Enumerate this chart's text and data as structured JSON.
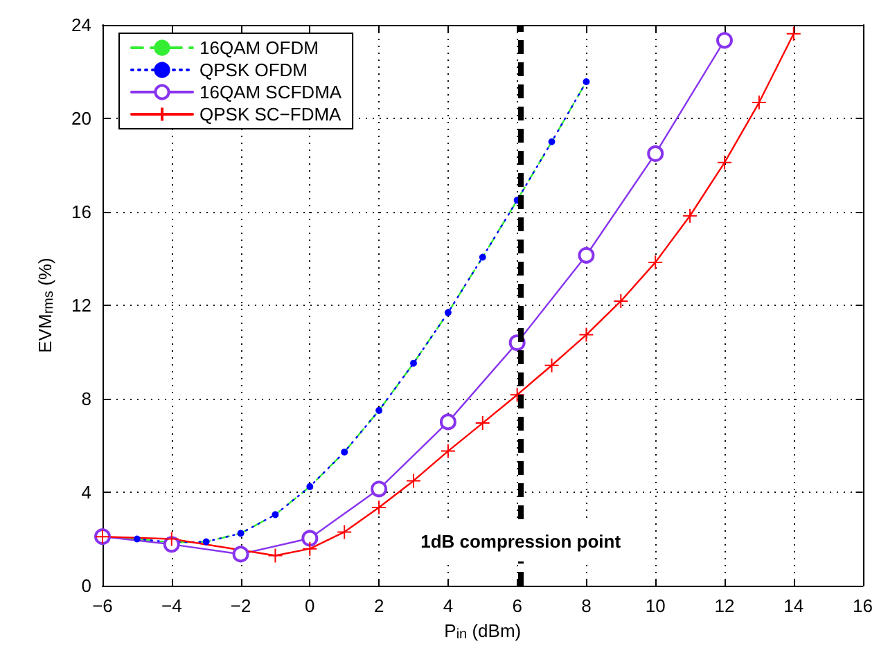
{
  "chart_data": {
    "type": "line",
    "xlabel": "P$_{in}$ (dBm)",
    "ylabel": "EVM$_{rms}$ (%)",
    "xlim": [
      -6,
      16
    ],
    "xticks": [
      -6,
      -4,
      -2,
      0,
      2,
      4,
      6,
      8,
      10,
      12,
      14,
      16
    ],
    "ylim": [
      0,
      24
    ],
    "yticks": [
      0,
      4,
      8,
      12,
      16,
      20,
      24
    ],
    "grid": true,
    "legend": "top left",
    "series": [
      {
        "name": "16QAM OFDM",
        "color": "#33ee33",
        "line_style": "dashed",
        "marker": "none",
        "x": [
          -6,
          -5,
          -4,
          -3,
          -2,
          -1,
          0,
          1,
          2,
          3,
          4,
          5,
          6,
          7,
          8
        ],
        "values": [
          2.1,
          2.0,
          1.85,
          1.88,
          2.24,
          3.04,
          4.24,
          5.72,
          7.5,
          9.52,
          11.69,
          14.06,
          16.5,
          19.0,
          21.57
        ]
      },
      {
        "name": "QPSK OFDM",
        "color": "#0000ff",
        "line_style": "dotted",
        "marker": "circle",
        "x": [
          -5,
          -4,
          -3,
          -2,
          -1,
          0,
          1,
          2,
          3,
          4,
          5,
          6,
          7,
          8
        ],
        "values": [
          2.0,
          1.85,
          1.88,
          2.24,
          3.04,
          4.24,
          5.72,
          7.5,
          9.52,
          11.69,
          14.06,
          16.5,
          19.0,
          21.57
        ]
      },
      {
        "name": "16QAM SCFDMA",
        "color": "#8833ee",
        "line_style": "solid",
        "marker": "circle",
        "x": [
          -6,
          -4,
          -2,
          0,
          2,
          4,
          6,
          8,
          10,
          12
        ],
        "values": [
          2.1,
          1.77,
          1.35,
          2.03,
          4.14,
          7.01,
          10.4,
          14.14,
          18.49,
          23.34
        ]
      },
      {
        "name": "QPSK SC−FDMA",
        "color": "#ff0000",
        "line_style": "solid",
        "marker": "cross",
        "x": [
          -6,
          -4,
          -1,
          0,
          1,
          2,
          3,
          4,
          5,
          6,
          7,
          8,
          9,
          10,
          11,
          12,
          13,
          14
        ],
        "values": [
          2.1,
          2.0,
          1.29,
          1.58,
          2.3,
          3.35,
          4.49,
          5.76,
          6.96,
          8.17,
          9.43,
          10.74,
          12.18,
          13.84,
          15.83,
          18.11,
          20.68,
          23.62
        ]
      }
    ],
    "ref_lines": [
      {
        "axis": "x",
        "value": 6.1,
        "label": "1dB compression point",
        "color": "#000000",
        "line_style": "dashed"
      }
    ]
  }
}
